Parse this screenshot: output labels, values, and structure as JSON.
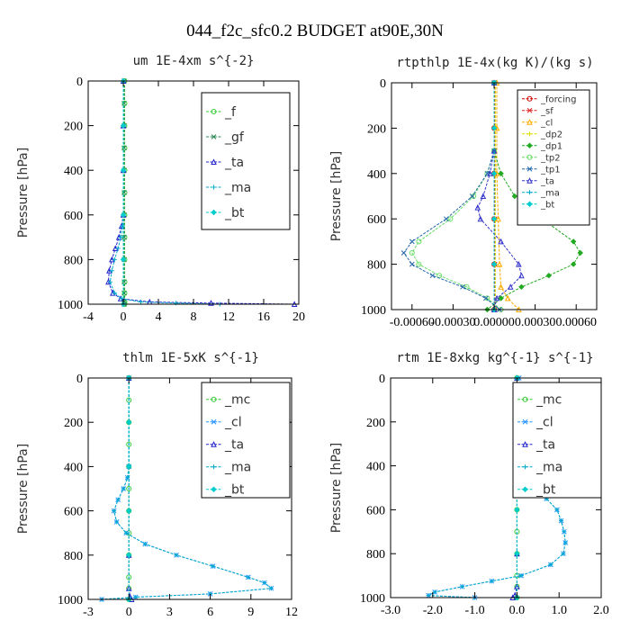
{
  "figure": {
    "title": "044_f2c_sfc0.2  BUDGET at90E,30N"
  },
  "chart_data": [
    {
      "type": "line",
      "title": "um  1E-4xm s^{-2}",
      "ylabel": "Pressure [hPa]",
      "xlim": [
        -4,
        20
      ],
      "ylim": [
        1000,
        0
      ],
      "xticks": [
        -4,
        0,
        4,
        8,
        12,
        16,
        20
      ],
      "xtick_labels": [
        "-4",
        "0",
        "4",
        "8",
        "12",
        "16",
        "20"
      ],
      "yticks": [
        0,
        200,
        400,
        600,
        800,
        1000
      ],
      "ytick_labels": [
        "0",
        "200",
        "400",
        "600",
        "800",
        "1000"
      ],
      "legend": "top-right",
      "series": [
        {
          "name": "_f",
          "color": "#33cc33",
          "y": [
            0,
            100,
            200,
            300,
            400,
            500,
            600,
            700,
            800,
            900,
            950,
            990,
            1000
          ],
          "x": [
            0.15,
            0.15,
            0.15,
            0.15,
            0.15,
            0.15,
            0.15,
            0.15,
            0.15,
            0.15,
            0.15,
            0.15,
            0.15
          ]
        },
        {
          "name": "_gf",
          "color": "#2e8b57",
          "y": [
            0,
            100,
            200,
            300,
            400,
            500,
            600,
            700,
            800,
            900,
            950,
            990,
            1000
          ],
          "x": [
            0.1,
            0.1,
            0.1,
            0.1,
            0.1,
            0.1,
            0.1,
            0.1,
            0.1,
            0.1,
            0.1,
            0.1,
            0.1
          ]
        },
        {
          "name": "_ta",
          "color": "#2222cc",
          "y": [
            0,
            200,
            400,
            600,
            650,
            700,
            750,
            800,
            850,
            900,
            950,
            975,
            990,
            995,
            1000
          ],
          "x": [
            0,
            0,
            0,
            0,
            -0.2,
            -0.5,
            -0.9,
            -1.3,
            -1.6,
            -1.7,
            -1.2,
            -0.3,
            3,
            10,
            19.5
          ]
        },
        {
          "name": "_ma",
          "color": "#00aacc",
          "y": [
            0,
            200,
            400,
            600,
            650,
            700,
            750,
            800,
            850,
            900,
            950,
            975,
            990,
            995,
            1000
          ],
          "x": [
            0,
            0,
            0,
            0,
            -0.1,
            -0.3,
            -0.6,
            -1.0,
            -1.3,
            -1.5,
            -1.0,
            -0.2,
            2,
            6,
            11
          ]
        },
        {
          "name": "_bt",
          "color": "#00cccc",
          "y": [
            0,
            200,
            400,
            600,
            800,
            1000
          ],
          "x": [
            0,
            0,
            0,
            0,
            0,
            0
          ]
        }
      ]
    },
    {
      "type": "line",
      "title": "rtpthlp  1E-4x(kg K)/(kg s)",
      "ylabel": "Pressure [hPa]",
      "xlim": [
        -0.00075,
        0.00075
      ],
      "ylim": [
        1000,
        0
      ],
      "xticks": [
        -0.0006,
        -0.0003,
        0,
        0.0003,
        0.0006
      ],
      "xtick_labels": [
        "-0.00060",
        "-0.00030",
        "0.00000",
        "0.00030",
        "0.00060"
      ],
      "yticks": [
        0,
        200,
        400,
        600,
        800,
        1000
      ],
      "ytick_labels": [
        "0",
        "200",
        "400",
        "600",
        "800",
        "1000"
      ],
      "legend": "top-right",
      "series": [
        {
          "name": "_forcing",
          "color": "#cc0000",
          "y": [
            0,
            200,
            400,
            600,
            800,
            1000
          ],
          "x": [
            0,
            0,
            0,
            0,
            0,
            0
          ]
        },
        {
          "name": "_sf",
          "color": "#dd2222",
          "y": [
            0,
            200,
            400,
            600,
            800,
            1000
          ],
          "x": [
            5e-06,
            5e-06,
            5e-06,
            5e-06,
            5e-06,
            5e-06
          ]
        },
        {
          "name": "_cl",
          "color": "#ffaa00",
          "y": [
            0,
            200,
            400,
            600,
            800,
            900,
            950,
            1000
          ],
          "x": [
            2e-05,
            2e-05,
            2e-05,
            3e-05,
            4e-05,
            5e-05,
            0.0001,
            0.00018
          ]
        },
        {
          "name": "_dp2",
          "color": "#dddd00",
          "y": [
            0,
            200,
            400,
            600,
            800,
            1000
          ],
          "x": [
            1e-05,
            1e-05,
            1e-05,
            1e-05,
            1e-05,
            1e-05
          ]
        },
        {
          "name": "_dp1",
          "color": "#22aa22",
          "y": [
            0,
            300,
            400,
            500,
            600,
            700,
            750,
            800,
            850,
            900,
            950,
            1000
          ],
          "x": [
            0,
            0,
            5e-05,
            0.00015,
            0.00035,
            0.00058,
            0.00063,
            0.00058,
            0.0004,
            0.0002,
            5e-05,
            -5e-05
          ]
        },
        {
          "name": "_tp2",
          "color": "#66dd66",
          "y": [
            0,
            300,
            400,
            500,
            600,
            700,
            750,
            800,
            850,
            900,
            950,
            1000
          ],
          "x": [
            0,
            0,
            -5e-05,
            -0.00015,
            -0.00032,
            -0.00055,
            -0.0006,
            -0.00055,
            -0.0004,
            -0.0002,
            -5e-05,
            5e-05
          ]
        },
        {
          "name": "_tp1",
          "color": "#2266aa",
          "y": [
            0,
            300,
            400,
            500,
            600,
            700,
            750,
            800,
            850,
            900,
            950,
            1000
          ],
          "x": [
            0,
            0,
            -5e-05,
            -0.00016,
            -0.00035,
            -0.0006,
            -0.00066,
            -0.0006,
            -0.00045,
            -0.00023,
            -6e-05,
            4e-05
          ]
        },
        {
          "name": "_ta",
          "color": "#3333cc",
          "y": [
            0,
            300,
            400,
            500,
            550,
            600,
            700,
            800,
            850,
            900,
            950,
            1000
          ],
          "x": [
            0,
            0,
            -3e-05,
            -8e-05,
            -0.00012,
            -0.0001,
            5e-05,
            0.00018,
            0.0002,
            0.00012,
            2e-05,
            0
          ]
        },
        {
          "name": "_ma",
          "color": "#00aacc",
          "y": [
            0,
            200,
            400,
            600,
            800,
            1000
          ],
          "x": [
            0,
            0,
            0,
            0,
            0,
            0
          ]
        },
        {
          "name": "_bt",
          "color": "#00cccc",
          "y": [
            0,
            200,
            400,
            600,
            800,
            1000
          ],
          "x": [
            0,
            0,
            0,
            0,
            0,
            0
          ]
        }
      ]
    },
    {
      "type": "line",
      "title": "thlm  1E-5xK s^{-1}",
      "ylabel": "Pressure [hPa]",
      "xlim": [
        -3,
        12
      ],
      "ylim": [
        1000,
        0
      ],
      "xticks": [
        -3,
        0,
        3,
        6,
        9,
        12
      ],
      "xtick_labels": [
        "-3",
        "0",
        "3",
        "6",
        "9",
        "12"
      ],
      "yticks": [
        0,
        200,
        400,
        600,
        800,
        1000
      ],
      "ytick_labels": [
        "0",
        "200",
        "400",
        "600",
        "800",
        "1000"
      ],
      "legend": "top-right",
      "series": [
        {
          "name": "_mc",
          "color": "#33cc33",
          "y": [
            0,
            100,
            200,
            300,
            400,
            500,
            600,
            700,
            800,
            900,
            950,
            1000
          ],
          "x": [
            0,
            0,
            0,
            0,
            0,
            0,
            0,
            0,
            0,
            0,
            0,
            0
          ]
        },
        {
          "name": "_cl",
          "color": "#1e90ff",
          "y": [
            0,
            400,
            450,
            500,
            550,
            600,
            650,
            700,
            750,
            800,
            850,
            900,
            925,
            950,
            975,
            990,
            1000
          ],
          "x": [
            0,
            0,
            -0.1,
            -0.4,
            -0.8,
            -1.1,
            -0.9,
            -0.2,
            1.2,
            3.5,
            6.2,
            8.8,
            10.0,
            10.5,
            6,
            0.5,
            -2
          ]
        },
        {
          "name": "_ta",
          "color": "#2222cc",
          "y": [
            0,
            800,
            950,
            990,
            1000
          ],
          "x": [
            0,
            0,
            0,
            0.1,
            0.2
          ]
        },
        {
          "name": "_ma",
          "color": "#00aacc",
          "y": [
            0,
            400,
            450,
            500,
            550,
            600,
            650,
            700,
            750,
            800,
            850,
            900,
            925,
            950,
            975,
            990,
            1000
          ],
          "x": [
            0,
            0,
            -0.1,
            -0.4,
            -0.8,
            -1.1,
            -0.9,
            -0.2,
            1.2,
            3.5,
            6.2,
            8.8,
            10.0,
            10.5,
            6,
            0.5,
            -2
          ]
        },
        {
          "name": "_bt",
          "color": "#00cccc",
          "y": [
            0,
            200,
            400,
            600,
            800,
            1000
          ],
          "x": [
            0,
            0,
            0,
            0,
            0,
            0
          ]
        }
      ]
    },
    {
      "type": "line",
      "title": "rtm  1E-8xkg kg^{-1} s^{-1}",
      "ylabel": "Pressure [hPa]",
      "xlim": [
        -3.0,
        2.0
      ],
      "ylim": [
        1000,
        0
      ],
      "xticks": [
        -3.0,
        -2.0,
        -1.0,
        0.0,
        1.0,
        2.0
      ],
      "xtick_labels": [
        "-3.0",
        "-2.0",
        "-1.0",
        "0.0",
        "1.0",
        "2.0"
      ],
      "yticks": [
        0,
        200,
        400,
        600,
        800,
        1000
      ],
      "ytick_labels": [
        "0",
        "200",
        "400",
        "600",
        "800",
        "1000"
      ],
      "legend": "top-right",
      "series": [
        {
          "name": "_mc",
          "color": "#33cc33",
          "y": [
            0,
            100,
            200,
            300,
            400,
            500,
            600,
            700,
            800,
            900,
            950,
            1000
          ],
          "x": [
            0,
            0,
            0,
            0,
            0,
            0,
            0,
            0,
            0,
            0,
            0,
            0
          ]
        },
        {
          "name": "_cl",
          "color": "#1e90ff",
          "y": [
            0,
            200,
            300,
            400,
            450,
            500,
            550,
            600,
            650,
            700,
            750,
            800,
            850,
            900,
            925,
            950,
            975,
            990,
            1000
          ],
          "x": [
            0.05,
            0.06,
            0.08,
            0.15,
            0.25,
            0.45,
            0.7,
            0.95,
            1.05,
            1.12,
            1.15,
            1.1,
            0.8,
            0.1,
            -0.6,
            -1.3,
            -1.95,
            -2.1,
            -1.0
          ]
        },
        {
          "name": "_ta",
          "color": "#2222cc",
          "y": [
            0,
            800,
            950,
            990,
            1000
          ],
          "x": [
            0,
            0,
            0,
            -0.05,
            -0.1
          ]
        },
        {
          "name": "_ma",
          "color": "#00aacc",
          "y": [
            0,
            200,
            300,
            400,
            450,
            500,
            550,
            600,
            650,
            700,
            750,
            800,
            850,
            900,
            925,
            950,
            975,
            990,
            1000
          ],
          "x": [
            0.05,
            0.06,
            0.08,
            0.15,
            0.25,
            0.45,
            0.7,
            0.95,
            1.05,
            1.12,
            1.15,
            1.1,
            0.8,
            0.1,
            -0.6,
            -1.3,
            -1.95,
            -2.1,
            -1.0
          ]
        },
        {
          "name": "_bt",
          "color": "#00cccc",
          "y": [
            0,
            200,
            400,
            600,
            800,
            1000
          ],
          "x": [
            0,
            0,
            0,
            0,
            0,
            0
          ]
        }
      ]
    }
  ]
}
